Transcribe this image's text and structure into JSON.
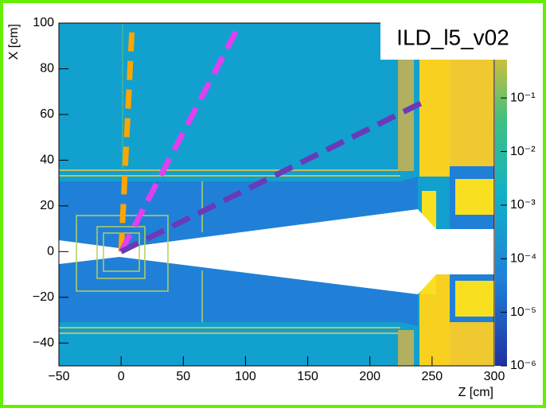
{
  "chart_data": {
    "type": "line",
    "title": "ILD_l5_v02",
    "x_label": "Z [cm]",
    "y_label": "X [cm]",
    "xlim": [
      -50,
      300
    ],
    "ylim": [
      -50,
      100
    ],
    "xticks": [
      {
        "value": -50,
        "label": "−50"
      },
      0,
      50,
      100,
      150,
      200,
      250,
      300
    ],
    "yticks": [
      {
        "value": -40,
        "label": "−40"
      },
      {
        "value": -20,
        "label": "−20"
      },
      0,
      20,
      40,
      60,
      80,
      100
    ],
    "zlog": true,
    "zlim": [
      1e-06,
      2.5
    ],
    "zticks": [
      {
        "value": 1e-06,
        "label": "10⁻⁶"
      },
      {
        "value": 1e-05,
        "label": "10⁻⁵"
      },
      {
        "value": 0.0001,
        "label": "10⁻⁴"
      },
      {
        "value": 0.001,
        "label": "10⁻³"
      },
      {
        "value": 0.01,
        "label": "10⁻²"
      },
      {
        "value": 0.1,
        "label": "10⁻¹"
      }
    ],
    "series": [
      {
        "color": "#ffa500",
        "x": [
          0,
          9
        ],
        "values": [
          0,
          100
        ]
      },
      {
        "color": "#e040f0",
        "x": [
          0,
          93
        ],
        "values": [
          0,
          97
        ]
      },
      {
        "color": "#6a3ab8",
        "x": [
          0,
          245
        ],
        "values": [
          0,
          66
        ]
      }
    ]
  }
}
